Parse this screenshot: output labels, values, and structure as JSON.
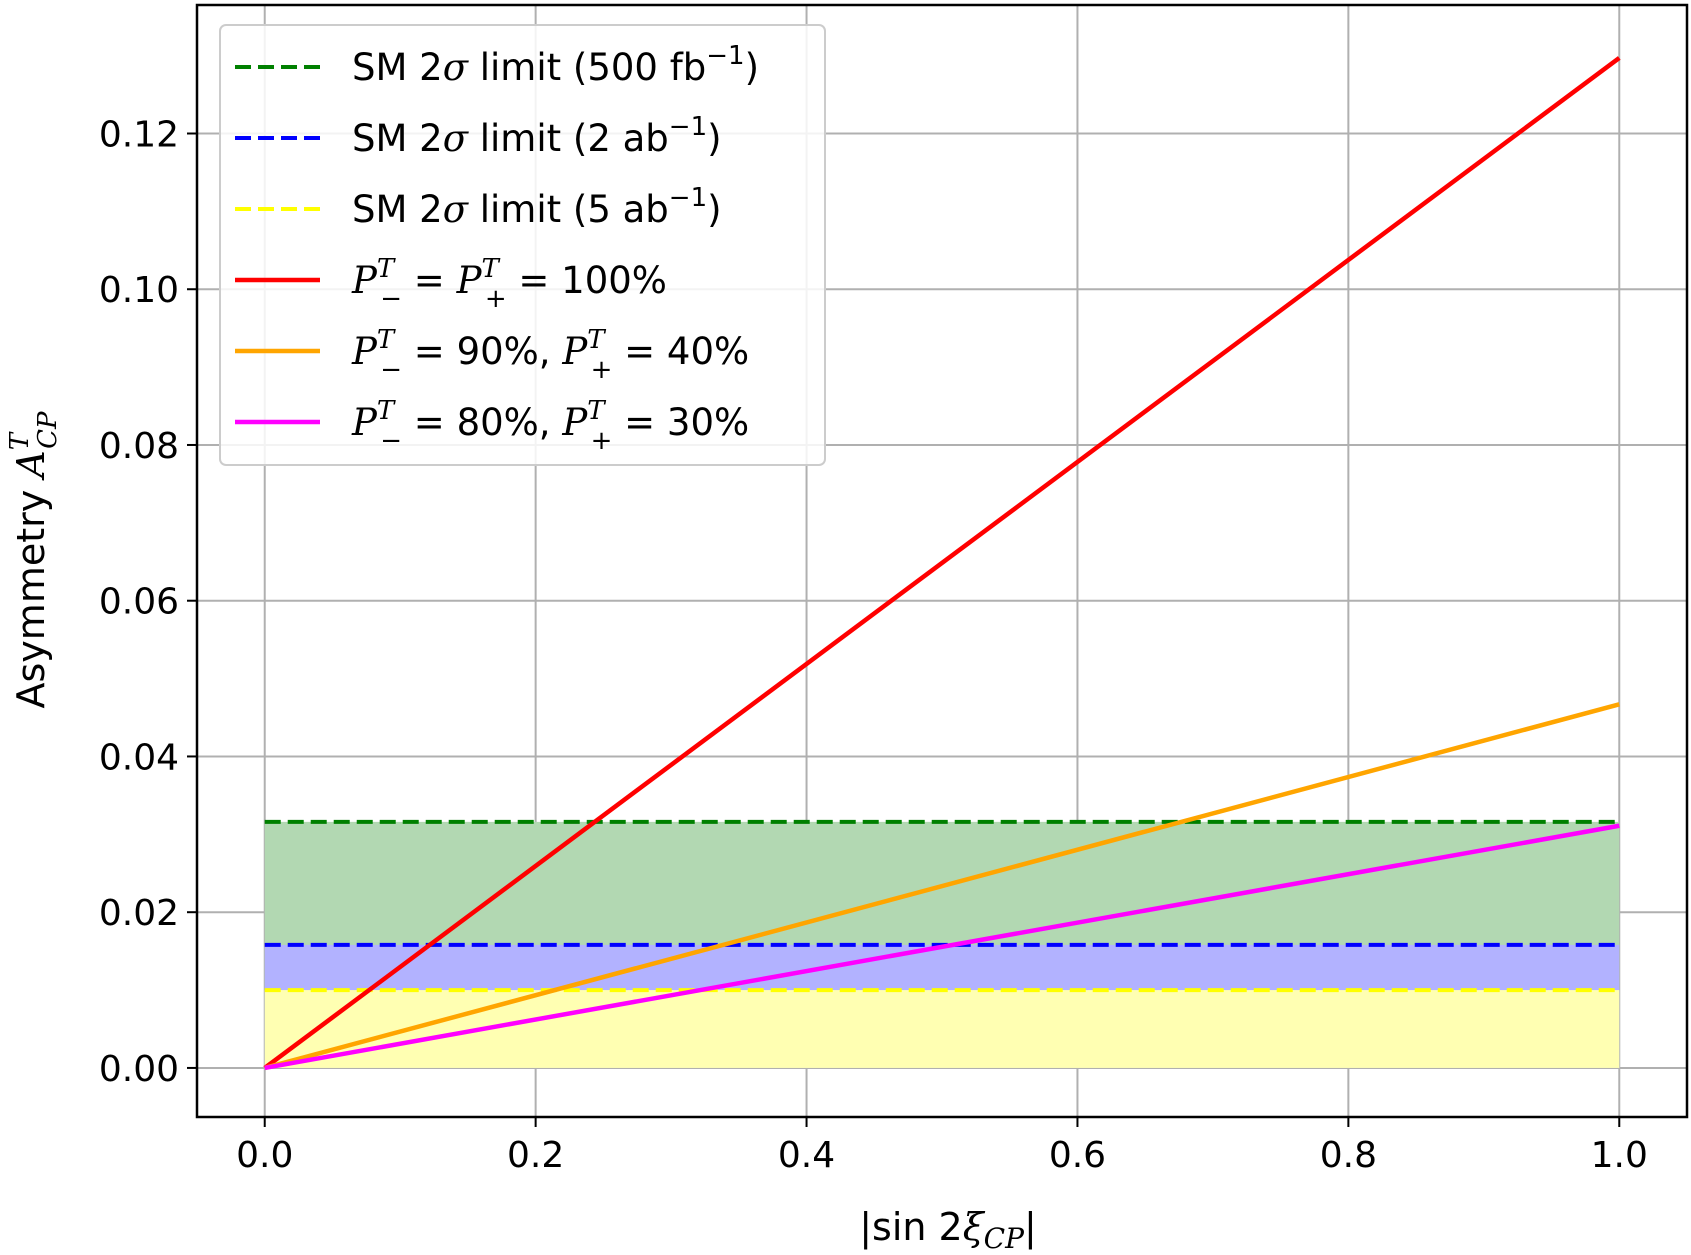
{
  "chart_data": {
    "type": "line",
    "xlabel": "|sin 2ξCP|",
    "xlabel_parts": {
      "prefix": "|sin 2",
      "symbol": "ξ",
      "sub": "CP",
      "suffix": "|"
    },
    "ylabel": "Asymmetry A^T_CP",
    "ylabel_parts": {
      "prefix": "Asymmetry ",
      "symbol": "A",
      "sup": "T",
      "sub": "CP"
    },
    "xlim": [
      -0.05,
      1.05
    ],
    "ylim": [
      -0.0063,
      0.1365
    ],
    "x_ticks": [
      0.0,
      0.2,
      0.4,
      0.6,
      0.8,
      1.0
    ],
    "x_tick_labels": [
      "0.0",
      "0.2",
      "0.4",
      "0.6",
      "0.8",
      "1.0"
    ],
    "y_ticks": [
      0.0,
      0.02,
      0.04,
      0.06,
      0.08,
      0.1,
      0.12
    ],
    "y_tick_labels": [
      "0.00",
      "0.02",
      "0.04",
      "0.06",
      "0.08",
      "0.10",
      "0.12"
    ],
    "grid": true,
    "legend_position": "upper-left",
    "limits": [
      {
        "name": "SM 2σ limit (500 fb⁻¹)",
        "value": 0.0316,
        "line_color": "#008000",
        "fill_color": "#b2d8b2",
        "style": "dashed",
        "label_parts": {
          "pre": "SM 2",
          "sym": "σ",
          "mid": " limit (500 fb",
          "sup": "−1",
          "post": ")"
        }
      },
      {
        "name": "SM 2σ limit (2 ab⁻¹)",
        "value": 0.0158,
        "line_color": "#0000ff",
        "fill_color": "#b2b2ff",
        "style": "dashed",
        "label_parts": {
          "pre": "SM 2",
          "sym": "σ",
          "mid": " limit (2 ab",
          "sup": "−1",
          "post": ")"
        }
      },
      {
        "name": "SM 2σ limit (5 ab⁻¹)",
        "value": 0.01,
        "line_color": "#ffff00",
        "fill_color": "#ffffb2",
        "style": "dashed",
        "label_parts": {
          "pre": "SM 2",
          "sym": "σ",
          "mid": " limit (5 ab",
          "sup": "−1",
          "post": ")"
        }
      }
    ],
    "series": [
      {
        "name": "P−T = P+T = 100%",
        "color": "#ff0000",
        "x": [
          0.0,
          1.0
        ],
        "y": [
          0.0,
          0.1297
        ],
        "label_parts": {
          "a": "P",
          "a_sup": "T",
          "a_sub": "−",
          "mid": " = ",
          "b": "P",
          "b_sup": "T",
          "b_sub": "+",
          "end": " = 100%"
        }
      },
      {
        "name": "P−T = 90%, P+T = 40%",
        "color": "#ffa500",
        "x": [
          0.0,
          1.0
        ],
        "y": [
          0.0,
          0.0467
        ],
        "label_parts": {
          "a": "P",
          "a_sup": "T",
          "a_sub": "−",
          "mid": " = 90%, ",
          "b": "P",
          "b_sup": "T",
          "b_sub": "+",
          "end": " = 40%"
        }
      },
      {
        "name": "P−T = 80%, P+T = 30%",
        "color": "#ff00ff",
        "x": [
          0.0,
          1.0
        ],
        "y": [
          0.0,
          0.0311
        ],
        "label_parts": {
          "a": "P",
          "a_sup": "T",
          "a_sub": "−",
          "mid": " = 80%, ",
          "b": "P",
          "b_sup": "T",
          "b_sub": "+",
          "end": " = 30%"
        }
      }
    ]
  }
}
